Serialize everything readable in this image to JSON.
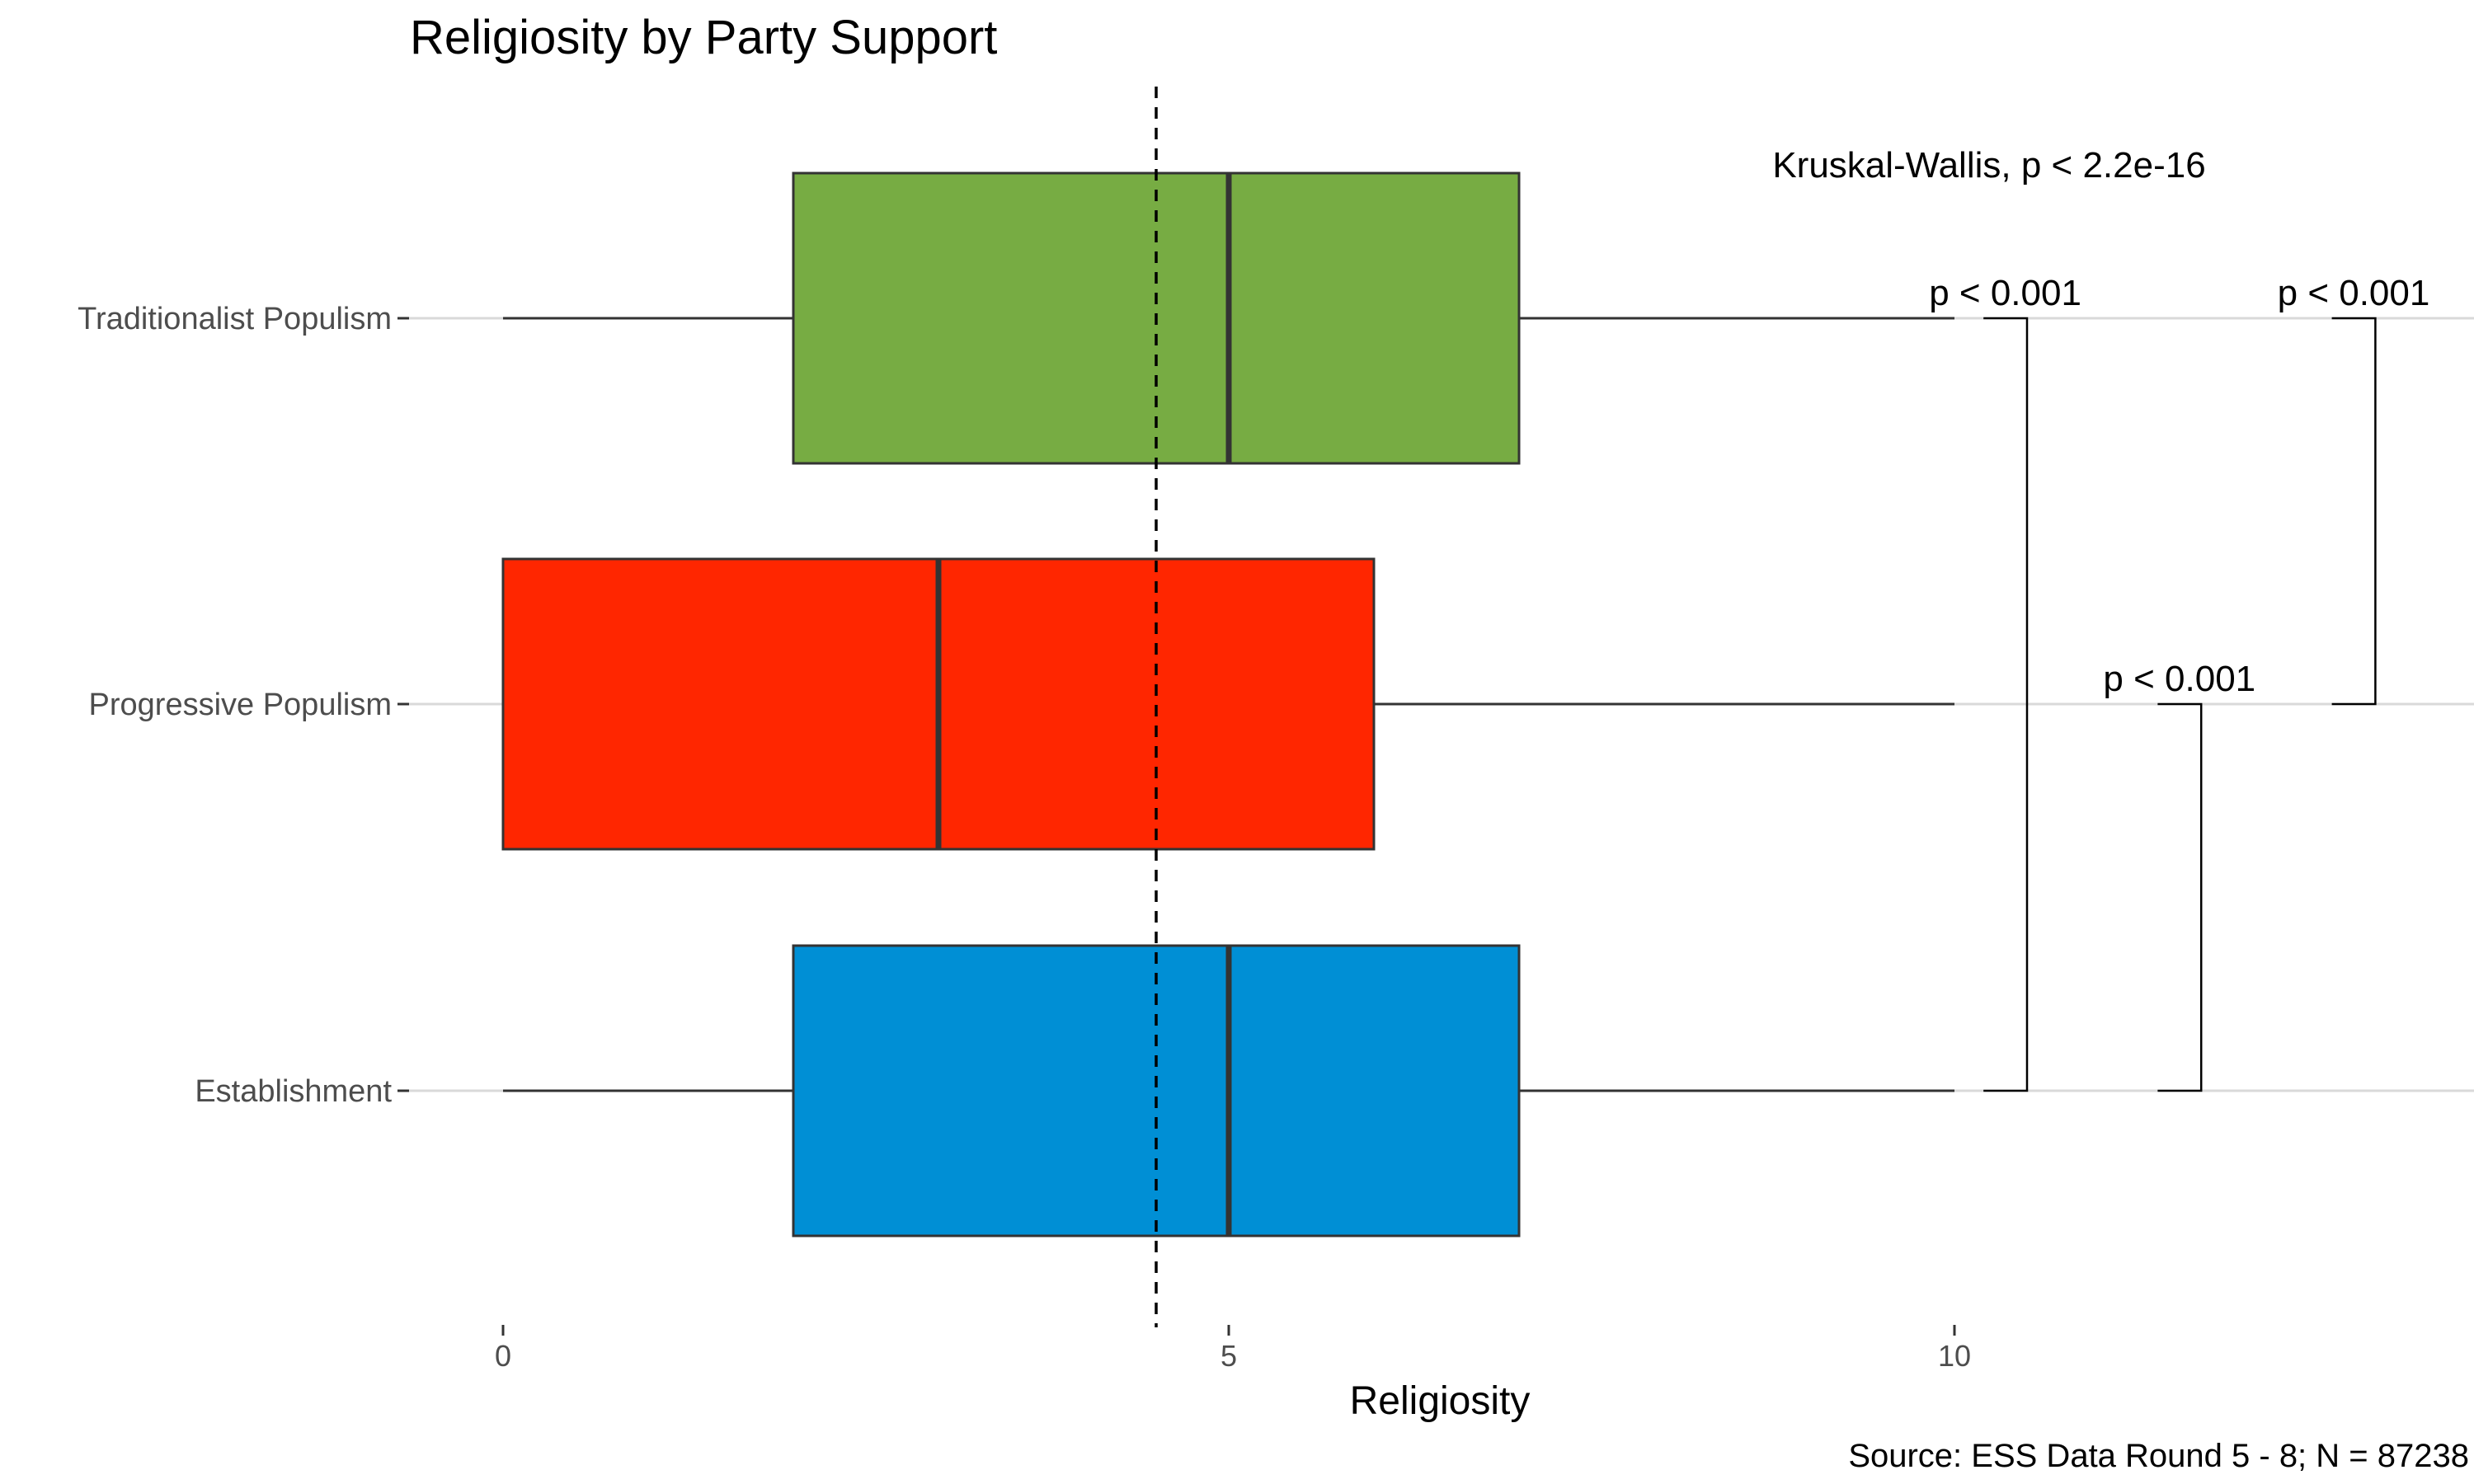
{
  "chart_data": {
    "type": "boxplot",
    "title": "Religiosity by Party Support",
    "xlabel": "Religiosity",
    "ylabel": "",
    "xlim": [
      0,
      10
    ],
    "x_ticks": [
      0,
      5,
      10
    ],
    "x_tick_labels": [
      "0",
      "5",
      "10"
    ],
    "grid": "horizontal major lines only",
    "orientation": "horizontal",
    "reference_line": {
      "x": 4.5,
      "style": "dashed"
    },
    "categories": [
      "Traditionalist Populism",
      "Progressive Populism",
      "Establishment"
    ],
    "series": [
      {
        "category": "Traditionalist Populism",
        "whisker_low": 0,
        "q1": 2,
        "median": 5,
        "q3": 7,
        "whisker_high": 10,
        "color": "#77AC43"
      },
      {
        "category": "Progressive Populism",
        "whisker_low": 0,
        "q1": 0,
        "median": 3,
        "q3": 6,
        "whisker_high": 10,
        "color": "#FF2600"
      },
      {
        "category": "Establishment",
        "whisker_low": 0,
        "q1": 2,
        "median": 5,
        "q3": 7,
        "whisker_high": 10,
        "color": "#008FD5"
      }
    ],
    "overall_test": "Kruskal-Wallis, p < 2.2e-16",
    "pairwise_comparisons": [
      {
        "group1": "Establishment",
        "group2": "Traditionalist Populism",
        "label": "p < 0.001",
        "x": 10.5
      },
      {
        "group1": "Establishment",
        "group2": "Progressive Populism",
        "label": "p < 0.001",
        "x": 11.7
      },
      {
        "group1": "Progressive Populism",
        "group2": "Traditionalist Populism",
        "label": "p < 0.001",
        "x": 12.9
      }
    ],
    "caption": "Source: ESS Data Round 5 - 8; N = 87238"
  }
}
